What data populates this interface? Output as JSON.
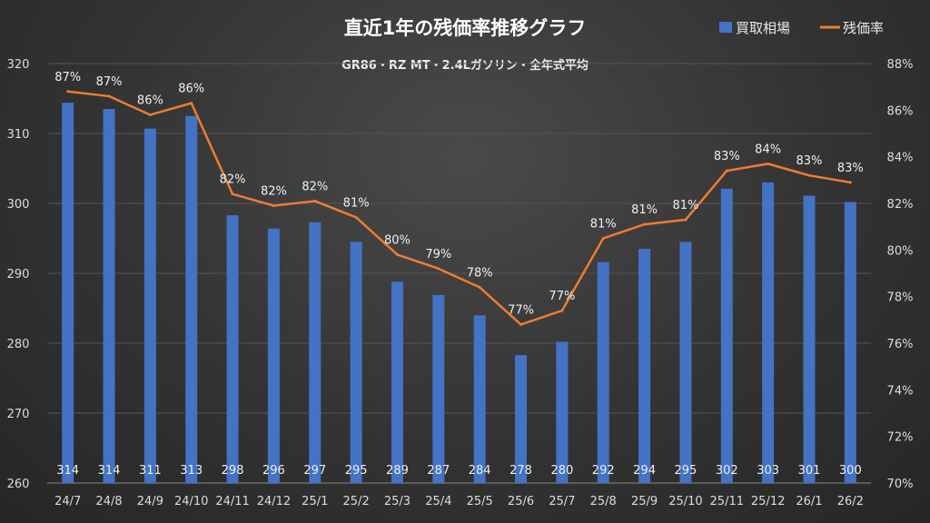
{
  "chart_data": {
    "type": "bar+line",
    "title": "直近1年の残価率推移グラフ",
    "subtitle": "GR86・RZ MT・2.4Lガソリン・全年式平均",
    "categories": [
      "24/7",
      "24/8",
      "24/9",
      "24/10",
      "24/11",
      "24/12",
      "25/1",
      "25/2",
      "25/3",
      "25/4",
      "25/5",
      "25/6",
      "25/7",
      "25/8",
      "25/9",
      "25/10",
      "25/11",
      "25/12",
      "26/1",
      "26/2"
    ],
    "series": [
      {
        "name": "買取相場",
        "type": "bar",
        "axis": "left",
        "color": "#4472c4",
        "values": [
          314.4,
          313.5,
          310.7,
          312.5,
          298.3,
          296.4,
          297.3,
          294.5,
          288.8,
          286.9,
          284.0,
          278.3,
          280.2,
          291.6,
          293.5,
          294.5,
          302.1,
          303.0,
          301.1,
          300.2
        ],
        "labels": [
          "314",
          "314",
          "311",
          "313",
          "298",
          "296",
          "297",
          "295",
          "289",
          "287",
          "284",
          "278",
          "280",
          "292",
          "294",
          "295",
          "302",
          "303",
          "301",
          "300"
        ]
      },
      {
        "name": "残価率",
        "type": "line",
        "axis": "right",
        "color": "#ed7d31",
        "values": [
          86.8,
          86.6,
          85.8,
          86.3,
          82.4,
          81.9,
          82.1,
          81.4,
          79.8,
          79.2,
          78.4,
          76.8,
          77.4,
          80.5,
          81.1,
          81.3,
          83.4,
          83.7,
          83.2,
          82.9
        ],
        "labels": [
          "87%",
          "87%",
          "86%",
          "86%",
          "82%",
          "82%",
          "82%",
          "81%",
          "80%",
          "79%",
          "78%",
          "77%",
          "77%",
          "81%",
          "81%",
          "81%",
          "83%",
          "84%",
          "83%",
          "83%"
        ]
      }
    ],
    "y_left": {
      "range": [
        260,
        320
      ],
      "ticks": [
        "260",
        "270",
        "280",
        "290",
        "300",
        "310",
        "320"
      ]
    },
    "y_right": {
      "range": [
        70,
        88
      ],
      "ticks": [
        "70%",
        "72%",
        "74%",
        "76%",
        "78%",
        "80%",
        "82%",
        "84%",
        "86%",
        "88%"
      ]
    },
    "grid": true,
    "legend": "top-right"
  }
}
